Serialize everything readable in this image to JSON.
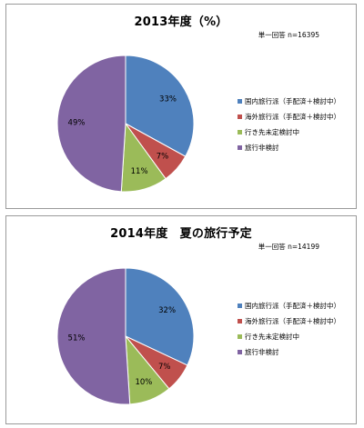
{
  "chart_data": [
    {
      "type": "pie",
      "title": "2013年度（%）",
      "note": "単一回答 n=16395",
      "categories": [
        "国内旅行派（手配済＋検討中）",
        "海外旅行派（手配済＋検討中）",
        "行き先未定検討中",
        "旅行非検討"
      ],
      "values": [
        33,
        7,
        11,
        49
      ],
      "labels": [
        "33%",
        "7%",
        "11%",
        "49%"
      ],
      "colors": [
        "#4f81bd",
        "#c0504d",
        "#9bbb59",
        "#8064a2"
      ],
      "legend_position": "right"
    },
    {
      "type": "pie",
      "title": "2014年度　夏の旅行予定",
      "note": "単一回答 n=14199",
      "categories": [
        "国内旅行派（手配済＋検討中）",
        "海外旅行派（手配済＋検討中）",
        "行き先未定検討中",
        "旅行非検討"
      ],
      "values": [
        32,
        7,
        10,
        51
      ],
      "labels": [
        "32%",
        "7%",
        "10%",
        "51%"
      ],
      "colors": [
        "#4f81bd",
        "#c0504d",
        "#9bbb59",
        "#8064a2"
      ],
      "legend_position": "right"
    }
  ]
}
